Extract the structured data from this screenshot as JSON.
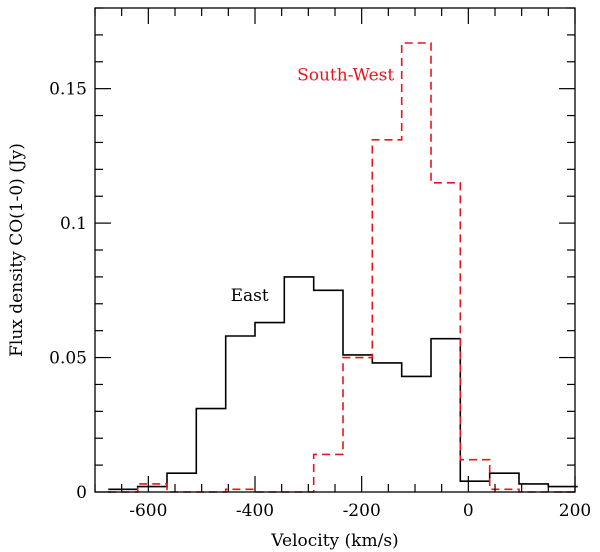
{
  "chart_data": {
    "type": "line",
    "style": "step-histogram",
    "xlabel": "Velocity (km/s)",
    "ylabel": "Flux density CO(1-0) (Jy)",
    "xlim": [
      -700,
      200
    ],
    "ylim": [
      0,
      0.18
    ],
    "xticks_major": [
      -600,
      -400,
      -200,
      0,
      200
    ],
    "xticks_minor_step": 50,
    "xtick_labels": [
      "-600",
      "-400",
      "-200",
      "0",
      "200"
    ],
    "yticks_major": [
      0,
      0.05,
      0.1,
      0.15
    ],
    "yticks_minor_step": 0.01,
    "ytick_labels": [
      "0",
      "0.05",
      "0.1",
      "0.15"
    ],
    "bin_width": 55,
    "series": [
      {
        "name": "East",
        "color": "#000000",
        "linestyle": "solid",
        "bin_edges_start": -675,
        "values": [
          0.001,
          0.002,
          0.007,
          0.031,
          0.058,
          0.063,
          0.08,
          0.075,
          0.051,
          0.048,
          0.043,
          0.057,
          0.004,
          0.007,
          0.003,
          0.002
        ]
      },
      {
        "name": "South-West",
        "color": "#e8141b",
        "linestyle": "dashed",
        "bin_edges_start": -675,
        "values": [
          0.0,
          0.003,
          0.0,
          0.0,
          0.001,
          0.0,
          0.0,
          0.014,
          0.05,
          0.131,
          0.167,
          0.115,
          0.012,
          0.001,
          0.0,
          0.0
        ]
      }
    ],
    "annotations": [
      {
        "text": "East",
        "series": "East",
        "x": -410,
        "y": 0.071,
        "color": "#000000"
      },
      {
        "text": "South-West",
        "series": "South-West",
        "x": -230,
        "y": 0.153,
        "color": "#e8141b"
      }
    ]
  }
}
